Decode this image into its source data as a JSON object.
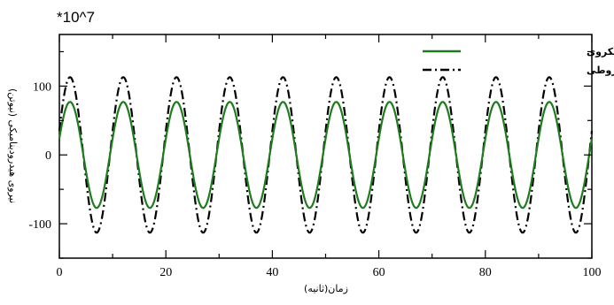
{
  "chart_data": {
    "type": "line",
    "multiplier_label": "*10^7",
    "xlabel": "زمان(ثانیه)",
    "ylabel": "نیروی هیدرودینامیکی (نیوتن)",
    "xlim": [
      0,
      100
    ],
    "ylim": [
      -150,
      175
    ],
    "x_ticks": [
      "0",
      "20",
      "40",
      "60",
      "80",
      "100"
    ],
    "x_tick_values": [
      0,
      20,
      40,
      60,
      80,
      100
    ],
    "y_ticks": [
      "100",
      "0",
      "-100"
    ],
    "y_tick_values": [
      100,
      0,
      -100
    ],
    "grid": false,
    "legend_position": "top-right",
    "series": [
      {
        "name": "بدنه شناور نیمکروی",
        "color": "#1e7b1e",
        "line_style": "solid",
        "amplitude": 77,
        "period": 10,
        "first_peak_x": 2,
        "x_range": [
          0,
          100
        ]
      },
      {
        "name": "بدنه شناور نیم مخروطی",
        "color": "#000000",
        "line_style": "dash-dot",
        "amplitude": 113,
        "period": 10,
        "first_peak_x": 2,
        "x_range": [
          0,
          100
        ]
      }
    ]
  }
}
